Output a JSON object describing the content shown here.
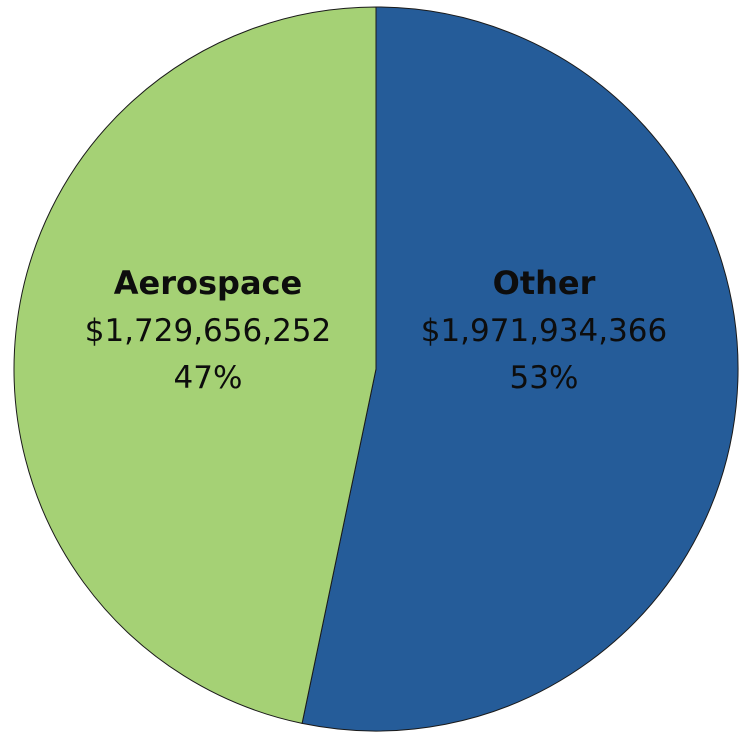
{
  "chart_data": {
    "type": "pie",
    "slices": [
      {
        "label": "Other",
        "value": 1971934366,
        "display_value": "$1,971,934,366",
        "percent": 53,
        "display_percent": "53%",
        "color": "#255c99"
      },
      {
        "label": "Aerospace",
        "value": 1729656252,
        "display_value": "$1,729,656,252",
        "percent": 47,
        "display_percent": "47%",
        "color": "#a5d175"
      }
    ],
    "start_angle_deg": 0,
    "direction": "clockwise",
    "legend": "none",
    "labels_position": "inside"
  }
}
